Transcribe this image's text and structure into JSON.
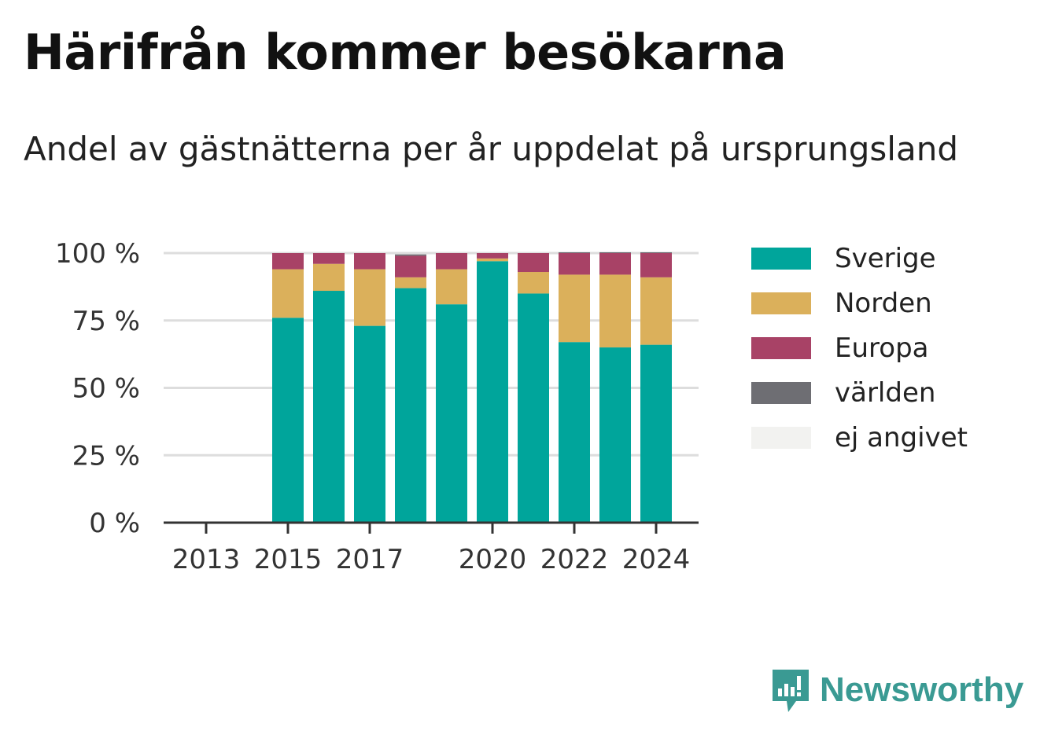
{
  "header": {
    "title": "Härifrån kommer besökarna",
    "subtitle": "Andel av gästnätterna per år uppdelat på ursprungsland"
  },
  "brand": {
    "name": "Newsworthy",
    "color": "#3a9a93",
    "icon": "newsworthy-logo-icon"
  },
  "chart_data": {
    "type": "bar",
    "stacked": true,
    "categories": [
      "2013",
      "2014",
      "2015",
      "2016",
      "2017",
      "2018",
      "2019",
      "2020",
      "2021",
      "2022",
      "2023",
      "2024"
    ],
    "x_tick_labels": [
      "2013",
      "2015",
      "2017",
      "2020",
      "2022",
      "2024"
    ],
    "y_tick_labels": [
      "0 %",
      "25 %",
      "50 %",
      "75 %",
      "100 %"
    ],
    "y_ticks": [
      0,
      25,
      50,
      75,
      100
    ],
    "ylim": [
      0,
      100
    ],
    "grid": true,
    "legend_position": "right",
    "series": [
      {
        "name": "Sverige",
        "color": "#00a59b",
        "values": [
          null,
          null,
          76,
          86,
          73,
          87,
          81,
          97,
          85,
          67,
          65,
          66
        ]
      },
      {
        "name": "Norden",
        "color": "#dbb05b",
        "values": [
          null,
          null,
          18,
          10,
          21,
          4,
          13,
          1,
          8,
          25,
          27,
          25
        ]
      },
      {
        "name": "Europa",
        "color": "#a84266",
        "values": [
          null,
          null,
          6,
          4,
          6,
          8,
          6,
          2,
          7,
          8,
          8,
          9
        ]
      },
      {
        "name": "världen",
        "color": "#6e6e73",
        "values": [
          null,
          null,
          0,
          0,
          0,
          0.5,
          0,
          0,
          0,
          0.3,
          0.3,
          0.3
        ]
      },
      {
        "name": "ej angivet",
        "color": "#f2f2f0",
        "values": [
          null,
          null,
          0,
          0,
          0,
          0,
          0,
          0,
          0,
          0,
          0,
          0
        ]
      }
    ]
  }
}
